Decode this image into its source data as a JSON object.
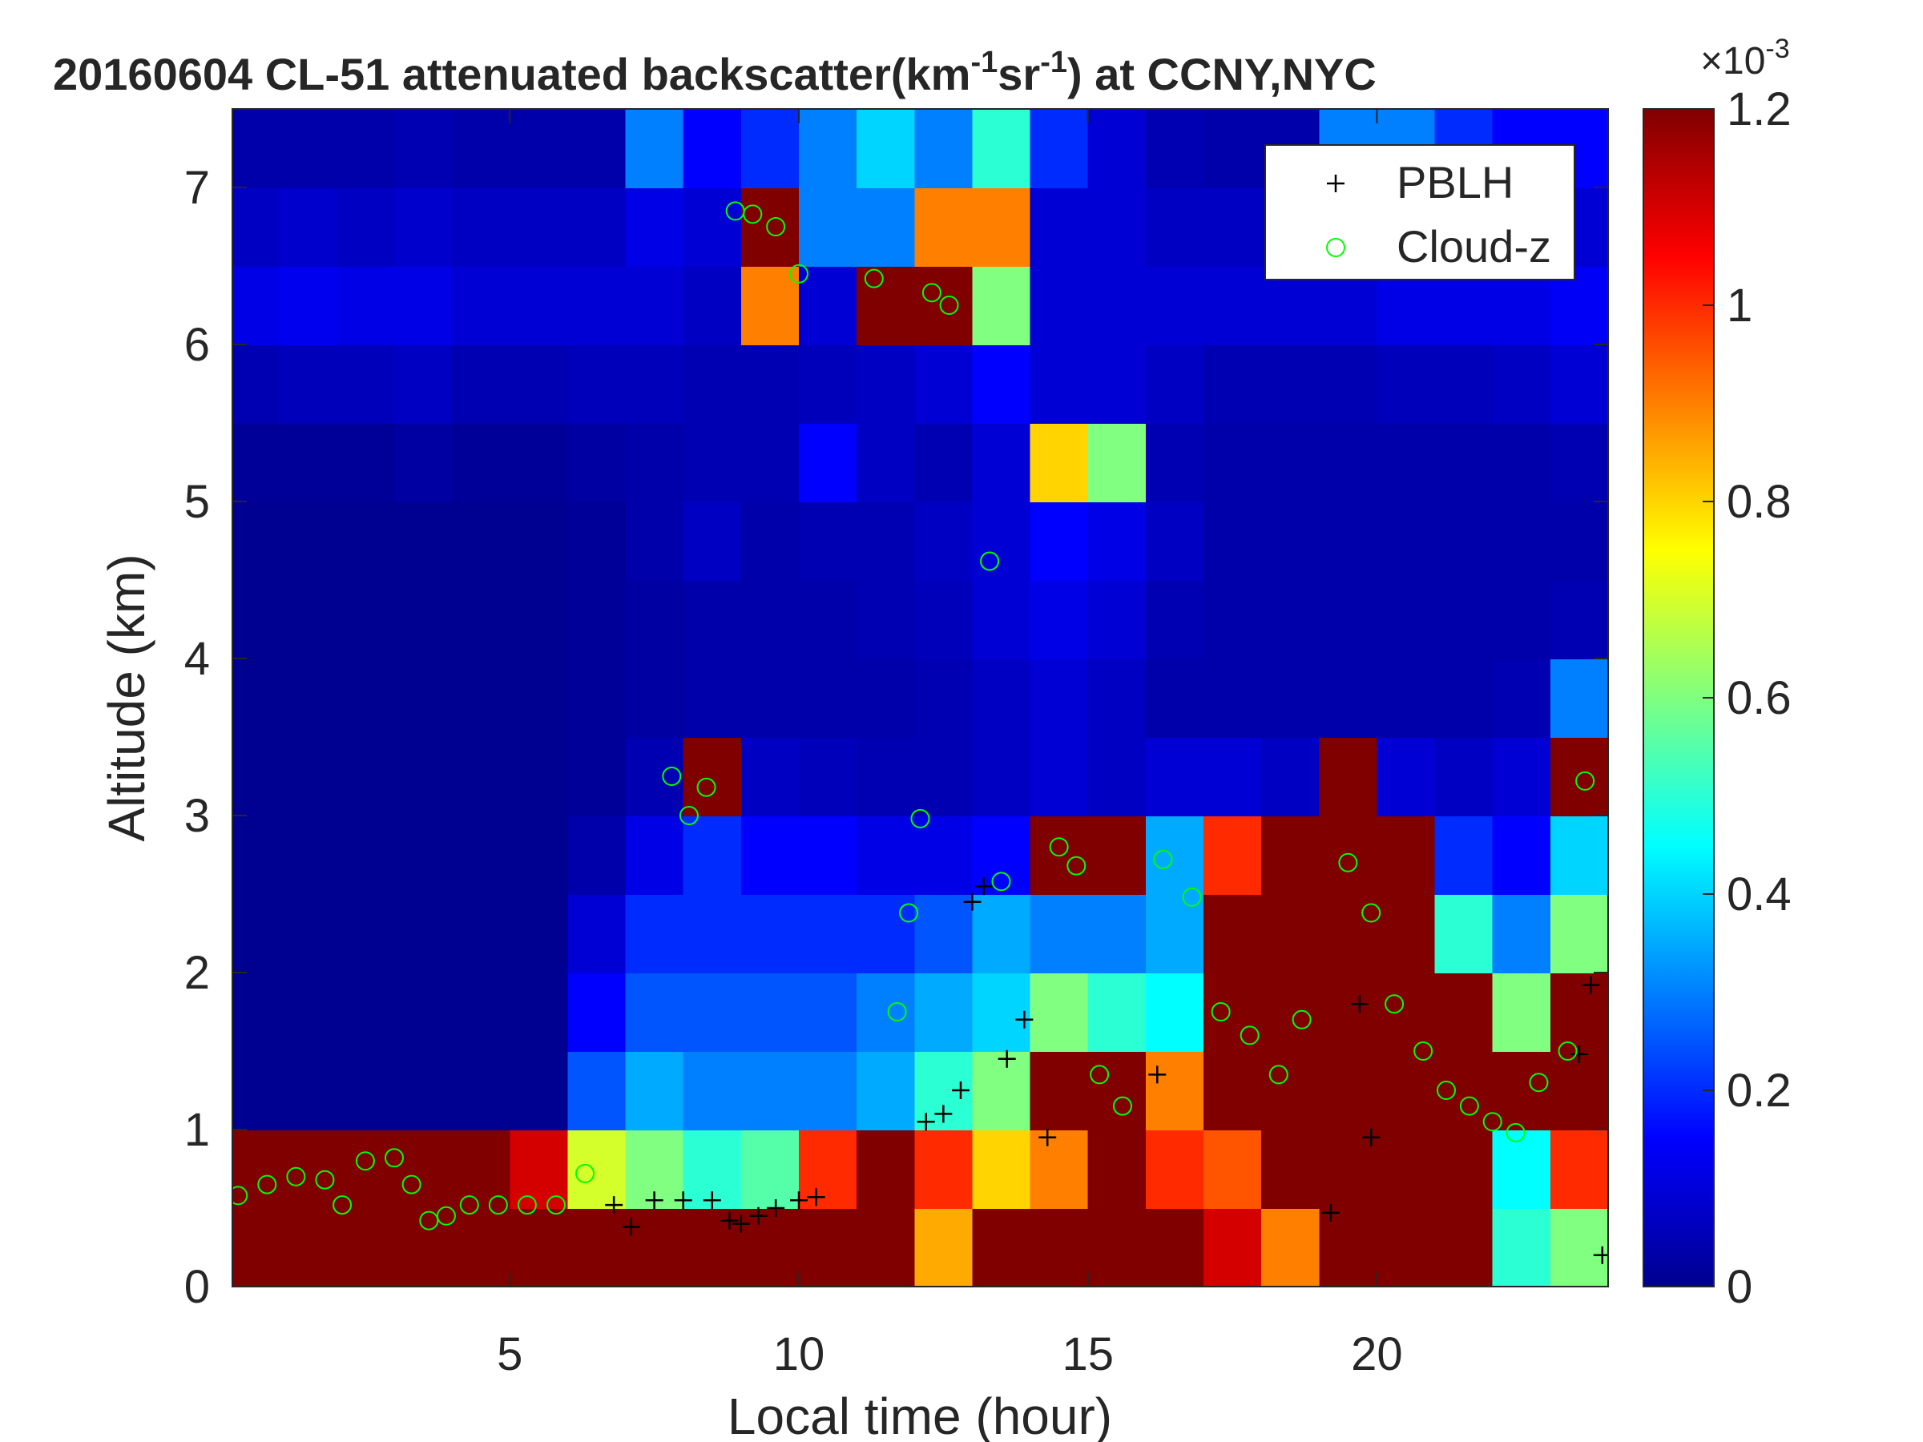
{
  "chart_data": {
    "type": "heatmap",
    "title": [
      "20160604  CL-51 attenuated backscatter(km",
      "-1",
      "sr",
      "-1",
      ") at CCNY,NYC"
    ],
    "xlabel": "Local time (hour)",
    "ylabel": "Altitude (km)",
    "xlim": [
      0.2,
      24
    ],
    "xticks": [
      5,
      10,
      15,
      20
    ],
    "ylim": [
      0,
      7.5
    ],
    "yticks": [
      0,
      1,
      2,
      3,
      4,
      5,
      6,
      7
    ],
    "colormap": "jet",
    "clim": [
      0,
      1.2
    ],
    "cticks": [
      0,
      0.2,
      0.4,
      0.6,
      0.8,
      1,
      1.2
    ],
    "colorbar_exponent": [
      "×10",
      "-3"
    ],
    "legend": "northeast",
    "x": [
      0.5,
      1.5,
      2.5,
      3.5,
      4.5,
      5.5,
      6.5,
      7.5,
      8.5,
      9.5,
      10.5,
      11.5,
      12.5,
      13.5,
      14.5,
      15.5,
      16.5,
      17.5,
      18.5,
      19.5,
      20.5,
      21.5,
      22.5,
      23.5
    ],
    "y": [
      0.25,
      0.75,
      1.25,
      1.75,
      2.25,
      2.75,
      3.25,
      3.75,
      4.25,
      4.75,
      5.25,
      5.75,
      6.25,
      6.75,
      7.25
    ],
    "z": [
      [
        1.2,
        1.2,
        0.02,
        0.02,
        0.02,
        0.02,
        0.02,
        0.02,
        0.02,
        0.02,
        0.03,
        0.06,
        0.12,
        0.08,
        0.05
      ],
      [
        1.2,
        1.2,
        0.02,
        0.02,
        0.02,
        0.02,
        0.02,
        0.02,
        0.02,
        0.02,
        0.03,
        0.07,
        0.13,
        0.09,
        0.05
      ],
      [
        1.2,
        1.2,
        0.02,
        0.02,
        0.02,
        0.02,
        0.02,
        0.02,
        0.02,
        0.02,
        0.03,
        0.07,
        0.12,
        0.08,
        0.05
      ],
      [
        1.2,
        1.2,
        0.02,
        0.02,
        0.02,
        0.02,
        0.02,
        0.02,
        0.02,
        0.02,
        0.04,
        0.08,
        0.12,
        0.09,
        0.06
      ],
      [
        1.2,
        1.2,
        0.02,
        0.02,
        0.02,
        0.02,
        0.02,
        0.02,
        0.02,
        0.02,
        0.03,
        0.06,
        0.1,
        0.08,
        0.05
      ],
      [
        1.2,
        1.1,
        0.02,
        0.02,
        0.02,
        0.02,
        0.02,
        0.02,
        0.02,
        0.02,
        0.03,
        0.06,
        0.1,
        0.08,
        0.05
      ],
      [
        1.2,
        0.7,
        0.25,
        0.15,
        0.1,
        0.05,
        0.03,
        0.03,
        0.03,
        0.03,
        0.04,
        0.07,
        0.1,
        0.08,
        0.05
      ],
      [
        1.2,
        0.6,
        0.35,
        0.25,
        0.2,
        0.12,
        0.06,
        0.04,
        0.04,
        0.05,
        0.05,
        0.07,
        0.1,
        0.12,
        0.3
      ],
      [
        1.2,
        0.5,
        0.3,
        0.25,
        0.2,
        0.2,
        1.2,
        0.05,
        0.05,
        0.08,
        0.06,
        0.06,
        0.08,
        0.1,
        0.15
      ],
      [
        1.2,
        0.55,
        0.3,
        0.25,
        0.2,
        0.15,
        0.08,
        0.05,
        0.05,
        0.05,
        0.06,
        0.06,
        0.9,
        1.2,
        0.2
      ],
      [
        1.2,
        1.0,
        0.3,
        0.25,
        0.2,
        0.15,
        0.07,
        0.05,
        0.05,
        0.06,
        0.15,
        0.07,
        0.1,
        0.3,
        0.3
      ],
      [
        1.2,
        1.2,
        0.35,
        0.3,
        0.2,
        0.12,
        0.06,
        0.05,
        0.06,
        0.06,
        0.08,
        0.08,
        1.2,
        0.3,
        0.4
      ],
      [
        0.85,
        1.0,
        0.5,
        0.35,
        0.25,
        0.12,
        0.06,
        0.06,
        0.07,
        0.08,
        0.06,
        0.1,
        1.2,
        0.9,
        0.3
      ],
      [
        1.2,
        0.8,
        0.6,
        0.4,
        0.35,
        0.15,
        0.08,
        0.08,
        0.1,
        0.1,
        0.1,
        0.15,
        0.6,
        0.9,
        0.5
      ],
      [
        1.2,
        0.9,
        1.2,
        0.6,
        0.3,
        1.2,
        0.1,
        0.1,
        0.12,
        0.15,
        0.8,
        0.1,
        0.1,
        0.1,
        0.2
      ],
      [
        1.2,
        1.2,
        1.2,
        0.5,
        0.3,
        1.2,
        0.08,
        0.08,
        0.1,
        0.12,
        0.6,
        0.1,
        0.1,
        0.1,
        0.1
      ],
      [
        1.2,
        1.0,
        0.9,
        0.45,
        0.35,
        0.35,
        0.1,
        0.05,
        0.06,
        0.08,
        0.06,
        0.08,
        0.1,
        0.08,
        0.06
      ],
      [
        1.1,
        0.95,
        1.2,
        1.2,
        1.2,
        1.0,
        0.1,
        0.05,
        0.05,
        0.05,
        0.05,
        0.06,
        0.1,
        0.08,
        0.05
      ],
      [
        0.9,
        1.2,
        1.2,
        1.2,
        1.2,
        1.2,
        0.08,
        0.05,
        0.05,
        0.05,
        0.05,
        0.06,
        0.1,
        0.08,
        0.05
      ],
      [
        1.2,
        1.2,
        1.2,
        1.2,
        1.2,
        1.2,
        1.2,
        0.05,
        0.05,
        0.05,
        0.05,
        0.06,
        0.1,
        0.1,
        0.3
      ],
      [
        1.2,
        1.2,
        1.2,
        1.2,
        1.2,
        1.2,
        0.1,
        0.05,
        0.05,
        0.05,
        0.05,
        0.07,
        0.12,
        0.12,
        0.3
      ],
      [
        1.2,
        1.2,
        1.2,
        1.2,
        0.5,
        0.2,
        0.08,
        0.05,
        0.05,
        0.05,
        0.05,
        0.07,
        0.12,
        0.1,
        0.2
      ],
      [
        0.5,
        0.45,
        1.2,
        0.6,
        0.3,
        0.15,
        0.1,
        0.06,
        0.05,
        0.05,
        0.05,
        0.08,
        0.12,
        0.1,
        0.15
      ],
      [
        0.6,
        1.0,
        1.2,
        1.2,
        0.6,
        0.4,
        1.2,
        0.3,
        0.06,
        0.05,
        0.06,
        0.1,
        0.14,
        0.1,
        0.15
      ]
    ],
    "series": [
      {
        "name": "PBLH",
        "color": "#000000",
        "marker": "+",
        "x": [
          6.8,
          7.1,
          7.5,
          8,
          8.5,
          8.8,
          9,
          9.3,
          9.6,
          10,
          10.3,
          12.2,
          12.5,
          12.8,
          13,
          13.2,
          13.6,
          13.9,
          14.3,
          16.2,
          19.2,
          19.7,
          19.9,
          23.5,
          23.7,
          23.9
        ],
        "values": [
          0.52,
          0.38,
          0.55,
          0.55,
          0.55,
          0.42,
          0.4,
          0.45,
          0.5,
          0.55,
          0.57,
          1.05,
          1.1,
          1.25,
          2.45,
          2.55,
          1.45,
          1.7,
          0.95,
          1.35,
          0.47,
          1.8,
          0.95,
          1.48,
          1.92,
          0.2
        ]
      },
      {
        "name": "Cloud-z",
        "color": "#00ff00",
        "marker": "o",
        "x": [
          0.3,
          0.8,
          1.3,
          1.8,
          2.1,
          2.5,
          3,
          3.3,
          3.6,
          3.9,
          4.3,
          4.8,
          5.3,
          5.8,
          6.3,
          7.8,
          8.1,
          8.4,
          8.9,
          9.2,
          9.6,
          10,
          11.3,
          11.7,
          11.9,
          12.1,
          12.3,
          12.6,
          13.3,
          13.5,
          14.5,
          14.8,
          15.2,
          15.6,
          16.3,
          16.8,
          17.3,
          17.8,
          18.3,
          18.7,
          19.5,
          19.9,
          20.3,
          20.8,
          21.2,
          21.6,
          22,
          22.4,
          22.8,
          23.3,
          23.6
        ],
        "values": [
          0.58,
          0.65,
          0.7,
          0.68,
          0.52,
          0.8,
          0.82,
          0.65,
          0.42,
          0.45,
          0.52,
          0.52,
          0.52,
          0.52,
          0.72,
          3.25,
          3.0,
          3.18,
          6.85,
          6.83,
          6.75,
          6.45,
          6.42,
          1.75,
          2.38,
          2.98,
          6.33,
          6.25,
          4.62,
          2.58,
          2.8,
          2.68,
          1.35,
          1.15,
          2.72,
          2.48,
          1.75,
          1.6,
          1.35,
          1.7,
          2.7,
          2.38,
          1.8,
          1.5,
          1.25,
          1.15,
          1.05,
          0.98,
          1.3,
          1.5,
          3.22
        ]
      }
    ]
  }
}
